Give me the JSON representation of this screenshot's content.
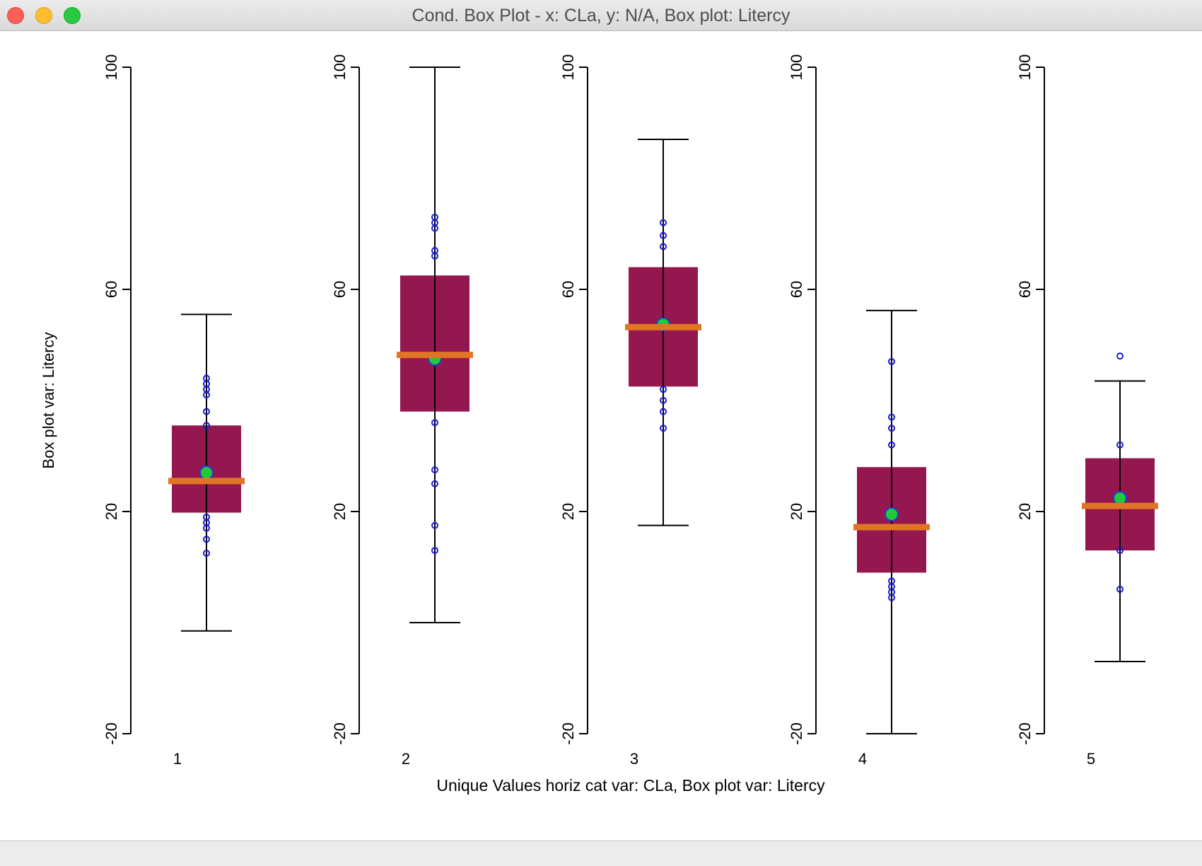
{
  "window": {
    "title": "Cond. Box Plot - x: CLa, y: N/A, Box plot: Litercy"
  },
  "colors": {
    "box_fill": "#94174f",
    "median": "#e07526",
    "mean_fill": "#22c93a",
    "mean_stroke": "#1a3fd6",
    "point_stroke": "#1a1ad0",
    "axis": "#000000"
  },
  "chart_data": {
    "type": "boxplot",
    "ylabel": "Box plot var: Litercy",
    "xlabel": "Unique Values horiz cat var: CLa,   Box plot var: Litercy",
    "ylim": [
      -20,
      100
    ],
    "yticks": [
      "-20",
      "20",
      "60",
      "100"
    ],
    "panels": [
      {
        "category": "1",
        "whisker_low": -1.5,
        "q1": 19.8,
        "median": 25.5,
        "q3": 35.5,
        "whisker_high": 55.5,
        "mean": 27.0,
        "points": [
          44,
          43,
          42,
          41,
          38,
          35.5,
          19,
          18,
          17,
          15,
          12.5
        ]
      },
      {
        "category": "2",
        "whisker_low": 0,
        "q1": 38,
        "median": 48.2,
        "q3": 62.5,
        "whisker_high": 100,
        "mean": 47.5,
        "points": [
          73,
          72,
          71,
          67,
          66,
          36,
          27.5,
          25,
          17.5,
          13
        ]
      },
      {
        "category": "3",
        "whisker_low": 17.5,
        "q1": 42.5,
        "median": 53.2,
        "q3": 64,
        "whisker_high": 87,
        "mean": 53.7,
        "points": [
          72,
          69.7,
          67.7,
          42,
          40,
          38,
          35
        ]
      },
      {
        "category": "4",
        "whisker_low": -20,
        "q1": 9,
        "median": 17.2,
        "q3": 28,
        "whisker_high": 56.2,
        "mean": 19.5,
        "points": [
          47,
          37,
          35,
          32,
          7.5,
          6.5,
          5.5,
          4.5
        ]
      },
      {
        "category": "5",
        "whisker_low": -7,
        "q1": 13,
        "median": 21,
        "q3": 29.6,
        "whisker_high": 43.5,
        "mean": 22.4,
        "points": [
          48,
          32,
          13,
          6
        ]
      }
    ]
  }
}
